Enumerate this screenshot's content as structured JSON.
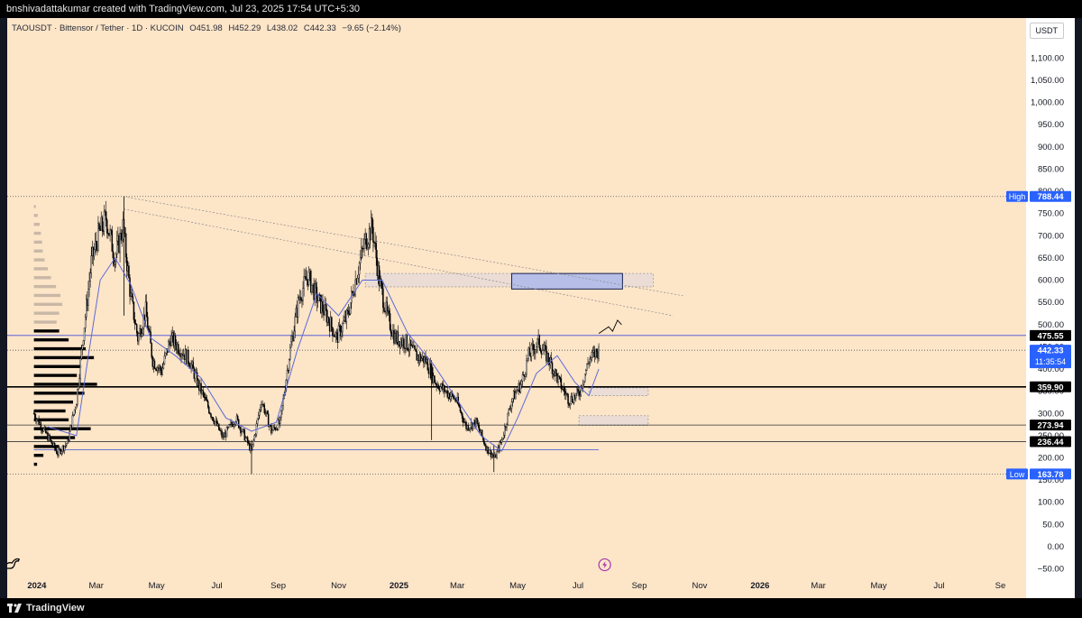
{
  "header": {
    "credit": "bnshivadattakumar created with TradingView.com, Jul 23, 2025 17:54 UTC+5:30"
  },
  "symbol_info": {
    "symbol": "TAOUSDT · Bittensor / Tether · 1D · KUCOIN",
    "open": "O451.98",
    "high": "H452.29",
    "low": "L438.02",
    "close": "C442.33",
    "change": "−9.65 (−2.14%)"
  },
  "currency_badge": "USDT",
  "footer": {
    "brand": "TradingView"
  },
  "colors": {
    "background": "#fde5c8",
    "candles": "#000000",
    "moving_average": "#5b6bd6",
    "volume_profile": "#000000",
    "level_line_blue": "#3f4fd6",
    "demand_zone": "#b7bfe8",
    "price_badge": "#2962ff"
  },
  "chart_data": {
    "type": "candlestick",
    "symbol": "TAOUSDT",
    "exchange": "KUCOIN",
    "interval": "1D",
    "ylim": [
      -65,
      1190
    ],
    "y_ticks": [
      -50,
      0,
      50,
      100,
      150,
      200,
      250,
      300,
      350,
      400,
      450,
      500,
      550,
      600,
      650,
      700,
      750,
      800,
      850,
      900,
      950,
      1000,
      1050,
      1100
    ],
    "y_tick_labels": [
      "−50.00",
      "0.00",
      "50.00",
      "100.00",
      "150.00",
      "200.00",
      "250.00",
      "300.00",
      "350.00",
      "400.00",
      "450.00",
      "500.00",
      "550.00",
      "600.00",
      "650.00",
      "700.00",
      "750.00",
      "800.00",
      "850.00",
      "900.00",
      "950.00",
      "1,000.00",
      "1,050.00",
      "1,100.00"
    ],
    "x_ticks": [
      "2024-01-01",
      "2024-03-01",
      "2024-05-01",
      "2024-07-01",
      "2024-09-01",
      "2024-11-01",
      "2025-01-01",
      "2025-03-01",
      "2025-05-01",
      "2025-07-01",
      "2025-09-01",
      "2025-11-01",
      "2026-01-01",
      "2026-03-01",
      "2026-05-01",
      "2026-07-01",
      "2026-09-01"
    ],
    "x_tick_labels": [
      "2024",
      "Mar",
      "May",
      "Jul",
      "Sep",
      "Nov",
      "2025",
      "Mar",
      "May",
      "Jul",
      "Sep",
      "Nov",
      "2026",
      "Mar",
      "May",
      "Jul",
      "Se"
    ],
    "x_range": [
      "2023-12-02",
      "2026-09-27"
    ],
    "price_path": [
      [
        "2023-12-29",
        300
      ],
      [
        "2024-01-10",
        255
      ],
      [
        "2024-01-22",
        210
      ],
      [
        "2024-02-01",
        235
      ],
      [
        "2024-02-10",
        330
      ],
      [
        "2024-02-17",
        480
      ],
      [
        "2024-02-25",
        640
      ],
      [
        "2024-03-03",
        700
      ],
      [
        "2024-03-11",
        740
      ],
      [
        "2024-03-20",
        650
      ],
      [
        "2024-03-28",
        720
      ],
      [
        "2024-04-05",
        560
      ],
      [
        "2024-04-12",
        470
      ],
      [
        "2024-04-20",
        530
      ],
      [
        "2024-04-27",
        420
      ],
      [
        "2024-05-06",
        395
      ],
      [
        "2024-05-15",
        470
      ],
      [
        "2024-05-25",
        445
      ],
      [
        "2024-06-03",
        420
      ],
      [
        "2024-06-13",
        360
      ],
      [
        "2024-06-25",
        300
      ],
      [
        "2024-07-07",
        245
      ],
      [
        "2024-07-20",
        290
      ],
      [
        "2024-08-05",
        215
      ],
      [
        "2024-08-15",
        330
      ],
      [
        "2024-08-25",
        260
      ],
      [
        "2024-09-03",
        280
      ],
      [
        "2024-09-12",
        430
      ],
      [
        "2024-09-22",
        560
      ],
      [
        "2024-10-01",
        610
      ],
      [
        "2024-10-10",
        560
      ],
      [
        "2024-10-20",
        520
      ],
      [
        "2024-10-30",
        470
      ],
      [
        "2024-11-10",
        520
      ],
      [
        "2024-11-20",
        620
      ],
      [
        "2024-11-28",
        690
      ],
      [
        "2024-12-05",
        720
      ],
      [
        "2024-12-12",
        600
      ],
      [
        "2024-12-20",
        520
      ],
      [
        "2024-12-28",
        470
      ],
      [
        "2025-01-08",
        460
      ],
      [
        "2025-01-18",
        430
      ],
      [
        "2025-01-28",
        420
      ],
      [
        "2025-02-07",
        370
      ],
      [
        "2025-02-17",
        350
      ],
      [
        "2025-02-28",
        330
      ],
      [
        "2025-03-10",
        270
      ],
      [
        "2025-03-20",
        280
      ],
      [
        "2025-03-31",
        220
      ],
      [
        "2025-04-08",
        200
      ],
      [
        "2025-04-15",
        240
      ],
      [
        "2025-04-25",
        330
      ],
      [
        "2025-05-05",
        370
      ],
      [
        "2025-05-12",
        430
      ],
      [
        "2025-05-22",
        460
      ],
      [
        "2025-06-02",
        420
      ],
      [
        "2025-06-12",
        370
      ],
      [
        "2025-06-22",
        330
      ],
      [
        "2025-07-02",
        345
      ],
      [
        "2025-07-12",
        420
      ],
      [
        "2025-07-22",
        442
      ]
    ],
    "moving_average_path": [
      [
        "2024-01-12",
        270
      ],
      [
        "2024-02-10",
        250
      ],
      [
        "2024-02-22",
        430
      ],
      [
        "2024-03-05",
        600
      ],
      [
        "2024-03-20",
        650
      ],
      [
        "2024-04-05",
        590
      ],
      [
        "2024-04-25",
        470
      ],
      [
        "2024-05-20",
        430
      ],
      [
        "2024-06-15",
        380
      ],
      [
        "2024-07-10",
        290
      ],
      [
        "2024-08-05",
        260
      ],
      [
        "2024-08-30",
        280
      ],
      [
        "2024-09-20",
        440
      ],
      [
        "2024-10-10",
        570
      ],
      [
        "2024-11-01",
        520
      ],
      [
        "2024-11-25",
        600
      ],
      [
        "2024-12-15",
        600
      ],
      [
        "2025-01-10",
        480
      ],
      [
        "2025-02-05",
        410
      ],
      [
        "2025-03-01",
        330
      ],
      [
        "2025-03-25",
        250
      ],
      [
        "2025-04-15",
        215
      ],
      [
        "2025-05-01",
        290
      ],
      [
        "2025-05-20",
        390
      ],
      [
        "2025-06-10",
        430
      ],
      [
        "2025-06-28",
        370
      ],
      [
        "2025-07-12",
        340
      ],
      [
        "2025-07-22",
        400
      ]
    ],
    "volume_profile": {
      "anchor_x": "2023-12-29",
      "bins": [
        {
          "price": 765,
          "size": 0.03,
          "tone": "light"
        },
        {
          "price": 745,
          "size": 0.06,
          "tone": "light"
        },
        {
          "price": 725,
          "size": 0.09,
          "tone": "light"
        },
        {
          "price": 705,
          "size": 0.11,
          "tone": "light"
        },
        {
          "price": 685,
          "size": 0.13,
          "tone": "light"
        },
        {
          "price": 665,
          "size": 0.14,
          "tone": "light"
        },
        {
          "price": 645,
          "size": 0.17,
          "tone": "light"
        },
        {
          "price": 625,
          "size": 0.22,
          "tone": "light"
        },
        {
          "price": 605,
          "size": 0.27,
          "tone": "light"
        },
        {
          "price": 585,
          "size": 0.35,
          "tone": "light"
        },
        {
          "price": 565,
          "size": 0.42,
          "tone": "light"
        },
        {
          "price": 545,
          "size": 0.45,
          "tone": "light"
        },
        {
          "price": 525,
          "size": 0.4,
          "tone": "light"
        },
        {
          "price": 505,
          "size": 0.36,
          "tone": "light"
        },
        {
          "price": 485,
          "size": 0.4,
          "tone": "dark"
        },
        {
          "price": 465,
          "size": 0.55,
          "tone": "dark"
        },
        {
          "price": 445,
          "size": 0.82,
          "tone": "dark"
        },
        {
          "price": 425,
          "size": 0.95,
          "tone": "dark"
        },
        {
          "price": 405,
          "size": 0.75,
          "tone": "dark"
        },
        {
          "price": 385,
          "size": 0.68,
          "tone": "dark"
        },
        {
          "price": 365,
          "size": 1.0,
          "tone": "dark"
        },
        {
          "price": 345,
          "size": 0.8,
          "tone": "dark"
        },
        {
          "price": 325,
          "size": 0.62,
          "tone": "dark"
        },
        {
          "price": 305,
          "size": 0.5,
          "tone": "dark"
        },
        {
          "price": 285,
          "size": 0.55,
          "tone": "dark"
        },
        {
          "price": 265,
          "size": 0.9,
          "tone": "dark"
        },
        {
          "price": 245,
          "size": 0.65,
          "tone": "dark"
        },
        {
          "price": 225,
          "size": 0.4,
          "tone": "dark"
        },
        {
          "price": 205,
          "size": 0.15,
          "tone": "dark"
        },
        {
          "price": 185,
          "size": 0.05,
          "tone": "dark"
        }
      ]
    },
    "levels": [
      {
        "name": "level-high",
        "value": 788.44,
        "style": "dotted",
        "badge_tag": "High",
        "badge_value": "788.44"
      },
      {
        "name": "level-475",
        "value": 475.55,
        "style": "solid-blue",
        "badge_value": "475.55"
      },
      {
        "name": "level-current-price",
        "value": 442.33,
        "style": "dotted",
        "badge_value": "442.33",
        "badge_sub": "11:35:54"
      },
      {
        "name": "level-359",
        "value": 359.9,
        "style": "solid-thick",
        "badge_value": "359.90"
      },
      {
        "name": "level-273",
        "value": 273.94,
        "style": "solid",
        "badge_value": "273.94"
      },
      {
        "name": "level-236",
        "value": 236.44,
        "style": "solid",
        "badge_value": "236.44"
      },
      {
        "name": "level-218-blue",
        "value": 218,
        "style": "solid-blue-short",
        "end": "2025-07-22"
      },
      {
        "name": "level-low",
        "value": 163.78,
        "style": "dotted",
        "badge_tag": "Low",
        "badge_value": "163.78"
      }
    ],
    "zones": [
      {
        "name": "supply-zone-outline",
        "x0": "2024-11-28",
        "x1": "2025-09-15",
        "y0": 585,
        "y1": 615,
        "style": "outline"
      },
      {
        "name": "target-zone-blue",
        "x0": "2025-04-25",
        "x1": "2025-08-15",
        "y0": 580,
        "y1": 615,
        "style": "filled-blue"
      },
      {
        "name": "demand-zone-1",
        "x0": "2025-07-12",
        "x1": "2025-09-10",
        "y0": 340,
        "y1": 358,
        "style": "outline"
      },
      {
        "name": "demand-zone-2",
        "x0": "2025-07-02",
        "x1": "2025-09-10",
        "y0": 273,
        "y1": 295,
        "style": "outline"
      }
    ],
    "trendlines": [
      {
        "name": "upper-trendline",
        "from": [
          "2024-03-29",
          788
        ],
        "to": [
          "2025-10-15",
          565
        ],
        "style": "dotted"
      },
      {
        "name": "lower-trendline",
        "from": [
          "2024-03-29",
          760
        ],
        "to": [
          "2025-10-05",
          520
        ],
        "style": "dotted"
      }
    ],
    "projection_path": [
      [
        "2025-07-22",
        480
      ],
      [
        "2025-08-01",
        495
      ],
      [
        "2025-08-05",
        485
      ],
      [
        "2025-08-10",
        510
      ],
      [
        "2025-08-14",
        500
      ]
    ]
  }
}
